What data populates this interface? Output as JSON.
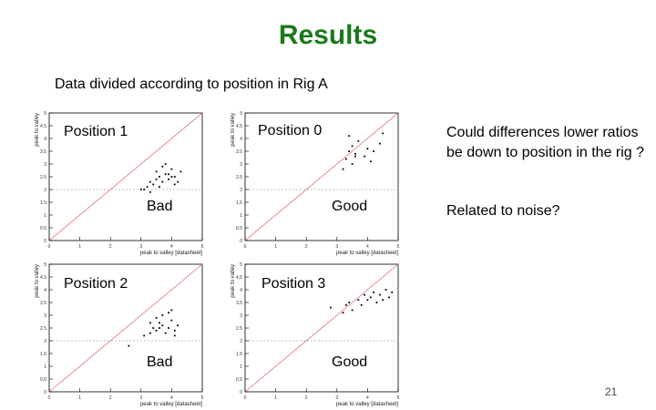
{
  "slide": {
    "title": "Results",
    "subtitle": "Data divided according to position in Rig A",
    "note1": "Could differences lower ratios be down to position in the rig ?",
    "note2": "Related to noise?",
    "page_number": "21"
  },
  "chart_data": [
    {
      "type": "scatter",
      "panel_label": "Position 1",
      "quality_label": "Bad",
      "xlabel": "peak to valley [datasheet]",
      "ylabel": "peak to valley",
      "xlim": [
        0,
        5
      ],
      "ylim": [
        0,
        5
      ],
      "xticks": [
        "0",
        "1",
        "2",
        "3",
        "4",
        "5"
      ],
      "yticks": [
        "0",
        "0.5",
        "1",
        "1.5",
        "2",
        "2.5",
        "3",
        "3.5",
        "4",
        "4.5",
        "5"
      ],
      "reference_line": "y = x",
      "threshold_y": 2,
      "x": [
        3.0,
        3.1,
        3.2,
        3.3,
        3.4,
        3.5,
        3.6,
        3.7,
        3.8,
        3.9,
        4.0,
        4.1,
        4.2,
        3.5,
        3.7,
        3.9,
        4.1,
        3.3,
        3.6,
        4.3,
        3.8,
        4.0
      ],
      "y": [
        2.0,
        2.0,
        2.1,
        2.3,
        2.2,
        2.4,
        2.5,
        2.3,
        2.6,
        2.4,
        2.8,
        2.5,
        2.3,
        2.7,
        2.9,
        2.6,
        2.2,
        1.9,
        2.1,
        2.7,
        3.0,
        2.5
      ]
    },
    {
      "type": "scatter",
      "panel_label": "Position 0",
      "quality_label": "Good",
      "xlabel": "peak to valley [datasheet]",
      "ylabel": "peak to valley",
      "xlim": [
        0,
        5
      ],
      "ylim": [
        0,
        5
      ],
      "xticks": [
        "0",
        "1",
        "2",
        "3",
        "4",
        "5"
      ],
      "yticks": [
        "0",
        "0.5",
        "1",
        "1.5",
        "2",
        "2.5",
        "3",
        "3.5",
        "4",
        "4.5",
        "5"
      ],
      "reference_line": "y = x",
      "threshold_y": 2,
      "x": [
        3.2,
        3.3,
        3.4,
        3.5,
        3.6,
        3.7,
        3.4,
        3.5,
        3.9,
        4.0,
        4.2,
        4.4,
        4.5,
        3.6,
        4.1
      ],
      "y": [
        2.8,
        3.2,
        3.5,
        3.7,
        3.3,
        3.9,
        4.1,
        3.0,
        3.3,
        3.6,
        3.5,
        3.8,
        4.2,
        3.4,
        3.1
      ]
    },
    {
      "type": "scatter",
      "panel_label": "Position 2",
      "quality_label": "Bad",
      "xlabel": "peak to valley [datasheet]",
      "ylabel": "peak to valley",
      "xlim": [
        0,
        5
      ],
      "ylim": [
        0,
        5
      ],
      "xticks": [
        "0",
        "1",
        "2",
        "3",
        "4",
        "5"
      ],
      "yticks": [
        "0",
        "0.5",
        "1",
        "1.5",
        "2",
        "2.5",
        "3",
        "3.5",
        "4",
        "4.5",
        "5"
      ],
      "reference_line": "y = x",
      "threshold_y": 2,
      "x": [
        2.6,
        3.1,
        3.3,
        3.4,
        3.5,
        3.6,
        3.7,
        3.8,
        3.9,
        4.0,
        4.1,
        4.2,
        3.5,
        3.7,
        3.9,
        4.1,
        3.3,
        3.6,
        4.0
      ],
      "y": [
        1.8,
        2.2,
        2.3,
        2.5,
        2.4,
        2.7,
        2.6,
        2.3,
        2.5,
        2.8,
        2.4,
        2.6,
        2.9,
        3.0,
        3.1,
        2.2,
        2.7,
        2.5,
        3.2
      ]
    },
    {
      "type": "scatter",
      "panel_label": "Position 3",
      "quality_label": "Good",
      "xlabel": "peak to valley [datasheet]",
      "ylabel": "peak to valley",
      "xlim": [
        0,
        5
      ],
      "ylim": [
        0,
        5
      ],
      "xticks": [
        "0",
        "1",
        "2",
        "3",
        "4",
        "5"
      ],
      "yticks": [
        "0",
        "0.5",
        "1",
        "1.5",
        "2",
        "2.5",
        "3",
        "3.5",
        "4",
        "4.5",
        "5"
      ],
      "reference_line": "y = x",
      "threshold_y": 2,
      "x": [
        2.8,
        3.2,
        3.4,
        3.5,
        3.7,
        3.8,
        3.9,
        4.0,
        4.1,
        4.2,
        4.3,
        4.4,
        4.6,
        4.7,
        4.8,
        3.3,
        4.5
      ],
      "y": [
        3.3,
        3.1,
        3.5,
        3.2,
        3.6,
        3.4,
        3.8,
        3.6,
        3.7,
        3.9,
        3.5,
        3.8,
        4.0,
        3.7,
        3.9,
        3.4,
        3.6
      ]
    }
  ]
}
